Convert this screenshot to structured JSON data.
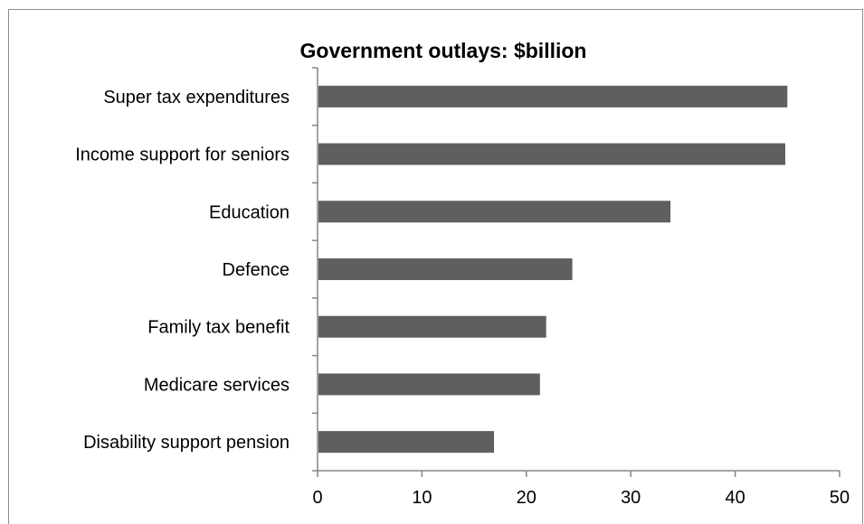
{
  "chart_data": {
    "type": "bar",
    "orientation": "horizontal",
    "title": "Government outlays: $billion",
    "xlabel": "",
    "ylabel": "",
    "categories": [
      "Super tax expenditures",
      "Income support for seniors",
      "Education",
      "Defence",
      "Family tax benefit",
      "Medicare services",
      "Disability support pension"
    ],
    "values": [
      45,
      44.8,
      33.8,
      24.4,
      21.9,
      21.3,
      16.9
    ],
    "xlim": [
      0,
      50
    ],
    "xticks": [
      "0",
      "10",
      "20",
      "30",
      "40",
      "50"
    ],
    "grid": false,
    "legend": "none",
    "bar_color": "#5f5f5f",
    "axis_color": "#868686"
  }
}
